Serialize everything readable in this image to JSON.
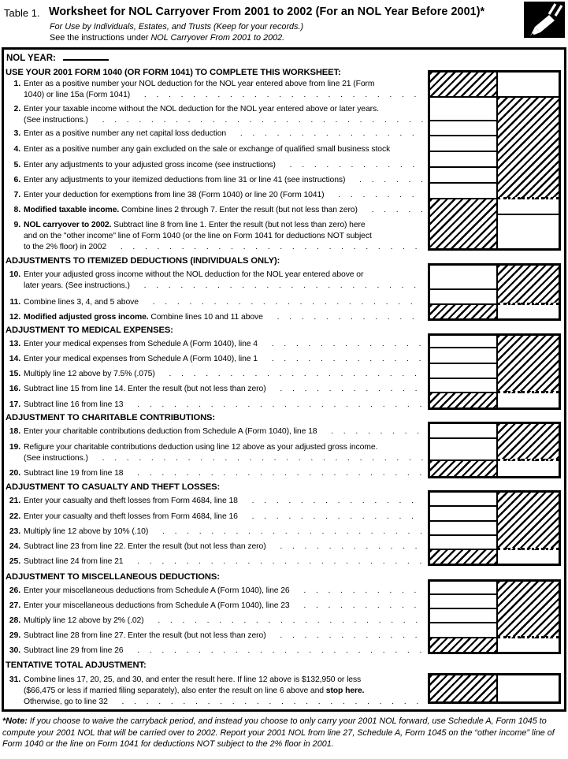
{
  "header": {
    "table_label": "Table 1.",
    "title": "Worksheet for NOL Carryover From 2001 to 2002 (For an NOL Year Before 2001)*",
    "for_use_line": "For Use by Individuals, Estates, and Trusts (Keep for your records.)",
    "see_instructions_prefix": "See the instructions under ",
    "see_instructions_italic": "NOL Carryover From 2001 to 2002.",
    "icon": "pencil-icon"
  },
  "nol_year_label": "NOL YEAR:",
  "section_headers": [
    "USE YOUR 2001 FORM 1040 (OR FORM 1041) TO COMPLETE THIS WORKSHEET:",
    "ADJUSTMENTS TO ITEMIZED DEDUCTIONS (INDIVIDUALS ONLY):",
    "ADJUSTMENT TO MEDICAL EXPENSES:",
    "ADJUSTMENT TO CHARITABLE CONTRIBUTIONS:",
    "ADJUSTMENT TO CASUALTY AND THEFT LOSSES:",
    "ADJUSTMENT TO MISCELLANEOUS DEDUCTIONS:",
    "TENTATIVE TOTAL ADJUSTMENT:"
  ],
  "lines": [
    {
      "n": "1.",
      "dots": true,
      "rows": [
        [
          {
            "t": "Enter as a positive number your NOL deduction for the NOL year entered above from line 21 (Form"
          }
        ],
        [
          {
            "t": "1040) or line 15a (Form 1041)"
          }
        ]
      ]
    },
    {
      "n": "2.",
      "dots": true,
      "rows": [
        [
          {
            "t": "Enter your taxable income without the NOL deduction for the NOL year entered above or later years."
          }
        ],
        [
          {
            "t": "(See instructions.)"
          }
        ]
      ]
    },
    {
      "n": "3.",
      "dots": true,
      "rows": [
        [
          {
            "t": "Enter as a positive number any net capital loss deduction"
          }
        ]
      ]
    },
    {
      "n": "4.",
      "dots": false,
      "rows": [
        [
          {
            "t": "Enter as a positive number any gain excluded on the sale or exchange of qualified small business stock"
          }
        ]
      ]
    },
    {
      "n": "5.",
      "dots": true,
      "rows": [
        [
          {
            "t": "Enter any adjustments to your adjusted gross income (see instructions)"
          }
        ]
      ]
    },
    {
      "n": "6.",
      "dots": true,
      "rows": [
        [
          {
            "t": "Enter any adjustments to your itemized deductions from line 31 or line 41 (see instructions)"
          }
        ]
      ]
    },
    {
      "n": "7.",
      "dots": true,
      "rows": [
        [
          {
            "t": "Enter your deduction for exemptions from line 38 (Form 1040) or line 20 (Form 1041)"
          }
        ]
      ]
    },
    {
      "n": "8.",
      "dots": true,
      "rows": [
        [
          {
            "t": "Modified taxable income.",
            "b": true
          },
          {
            "t": " Combine lines 2 through 7. Enter the result (but not less than zero)"
          }
        ]
      ]
    },
    {
      "n": "9.",
      "dots": true,
      "rows": [
        [
          {
            "t": "NOL carryover to 2002.",
            "b": true
          },
          {
            "t": " Subtract line 8 from line 1. Enter the result (but not less than zero) here"
          }
        ],
        [
          {
            "t": "and on the \"other income\" line of Form 1040 (or the line on Form 1041 for deductions NOT subject"
          }
        ],
        [
          {
            "t": "to the 2% floor) in 2002"
          }
        ]
      ]
    },
    {
      "n": "10.",
      "dots": true,
      "rows": [
        [
          {
            "t": "Enter your adjusted gross income without the NOL deduction for the NOL year entered above or"
          }
        ],
        [
          {
            "t": "later years. (See instructions.)"
          }
        ]
      ]
    },
    {
      "n": "11.",
      "dots": true,
      "rows": [
        [
          {
            "t": "Combine lines 3, 4, and 5 above"
          }
        ]
      ]
    },
    {
      "n": "12.",
      "dots": true,
      "rows": [
        [
          {
            "t": "Modified adjusted gross income.",
            "b": true
          },
          {
            "t": " Combine lines 10 and 11 above"
          }
        ]
      ]
    },
    {
      "n": "13.",
      "dots": true,
      "rows": [
        [
          {
            "t": "Enter your medical expenses from Schedule A (Form 1040), line 4"
          }
        ]
      ]
    },
    {
      "n": "14.",
      "dots": true,
      "rows": [
        [
          {
            "t": "Enter your medical expenses from Schedule A (Form 1040), line 1"
          }
        ]
      ]
    },
    {
      "n": "15.",
      "dots": true,
      "rows": [
        [
          {
            "t": "Multiply line 12 above by 7.5% (.075)"
          }
        ]
      ]
    },
    {
      "n": "16.",
      "dots": true,
      "rows": [
        [
          {
            "t": "Subtract line 15 from line 14. Enter the result (but not less than zero)"
          }
        ]
      ]
    },
    {
      "n": "17.",
      "dots": true,
      "rows": [
        [
          {
            "t": "Subtract line 16 from line 13"
          }
        ]
      ]
    },
    {
      "n": "18.",
      "dots": true,
      "rows": [
        [
          {
            "t": "Enter your charitable contributions deduction from Schedule A (Form 1040), line 18"
          }
        ]
      ]
    },
    {
      "n": "19.",
      "dots": true,
      "rows": [
        [
          {
            "t": "Refigure your charitable contributions deduction using line 12 above as your adjusted gross income."
          }
        ],
        [
          {
            "t": "(See instructions.)"
          }
        ]
      ]
    },
    {
      "n": "20.",
      "dots": true,
      "rows": [
        [
          {
            "t": "Subtract line 19 from line 18"
          }
        ]
      ]
    },
    {
      "n": "21.",
      "dots": true,
      "rows": [
        [
          {
            "t": "Enter your casualty and theft losses from Form 4684, line 18"
          }
        ]
      ]
    },
    {
      "n": "22.",
      "dots": true,
      "rows": [
        [
          {
            "t": "Enter your casualty and theft losses from Form 4684, line 16"
          }
        ]
      ]
    },
    {
      "n": "23.",
      "dots": true,
      "rows": [
        [
          {
            "t": "Multiply line 12 above by 10% (.10)"
          }
        ]
      ]
    },
    {
      "n": "24.",
      "dots": true,
      "rows": [
        [
          {
            "t": "Subtract line 23 from line 22. Enter the result (but not less than zero)"
          }
        ]
      ]
    },
    {
      "n": "25.",
      "dots": true,
      "rows": [
        [
          {
            "t": "Subtract line 24 from line 21"
          }
        ]
      ]
    },
    {
      "n": "26.",
      "dots": true,
      "rows": [
        [
          {
            "t": "Enter your miscellaneous deductions from Schedule A (Form 1040), line 26"
          }
        ]
      ]
    },
    {
      "n": "27.",
      "dots": true,
      "rows": [
        [
          {
            "t": "Enter your miscellaneous deductions from Schedule A (Form 1040), line 23"
          }
        ]
      ]
    },
    {
      "n": "28.",
      "dots": true,
      "rows": [
        [
          {
            "t": "Multiply line 12 above by 2% (.02)"
          }
        ]
      ]
    },
    {
      "n": "29.",
      "dots": true,
      "rows": [
        [
          {
            "t": "Subtract line 28 from line 27. Enter the result (but not less than zero)"
          }
        ]
      ]
    },
    {
      "n": "30.",
      "dots": true,
      "rows": [
        [
          {
            "t": "Subtract line 29 from line 26"
          }
        ]
      ]
    },
    {
      "n": "31.",
      "dots": true,
      "rows": [
        [
          {
            "t": "Combine lines 17, 20, 25, and 30, and enter the result here. If line 12 above is $132,950 or less"
          }
        ],
        [
          {
            "t": "($66,475 or less if married filing separately), also enter the result on line 6 above and "
          },
          {
            "t": "stop here.",
            "b": true
          }
        ],
        [
          {
            "t": "Otherwise, go to line 32"
          }
        ]
      ]
    }
  ],
  "footnote": {
    "label": "*Note:",
    "text": " If you choose to waive the carryback period, and instead you choose to only carry your 2001 NOL forward, use Schedule A, Form 1045 to compute your 2001 NOL that will be carried over to 2002. Report your 2001 NOL from line 27, Schedule A, Form 1045 on the “other income” line of Form 1040 or the line on Form 1041 for deductions NOT subject to the 2% floor in 2001."
  },
  "colors": {
    "ink": "#000000",
    "paper": "#ffffff"
  }
}
